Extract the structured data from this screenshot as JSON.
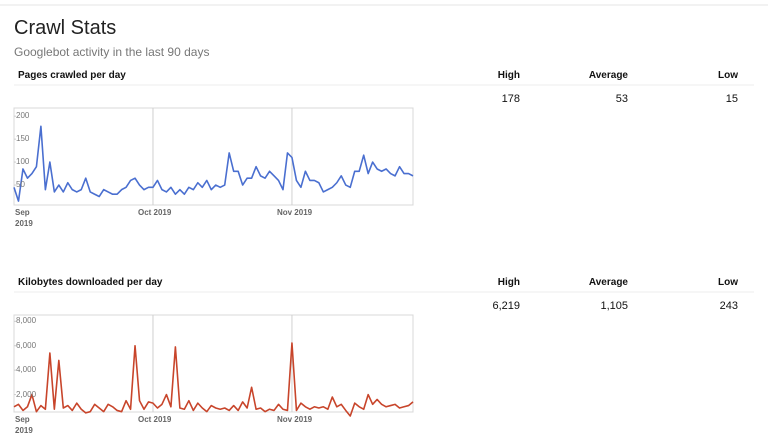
{
  "header": {
    "title": "Crawl Stats",
    "subtitle": "Googlebot activity in the last 90 days"
  },
  "chart_data": [
    {
      "type": "line",
      "title": "Pages crawled per day",
      "summary_labels": [
        "High",
        "Average",
        "Low"
      ],
      "summary_values": [
        178,
        53,
        15
      ],
      "categories": [
        "Sep 2019",
        null,
        null,
        null,
        null,
        null,
        null,
        null,
        null,
        null,
        null,
        null,
        null,
        null,
        null,
        null,
        null,
        null,
        null,
        null,
        null,
        null,
        null,
        null,
        null,
        null,
        null,
        null,
        null,
        null,
        null,
        "Oct 2019",
        null,
        null,
        null,
        null,
        null,
        null,
        null,
        null,
        null,
        null,
        null,
        null,
        null,
        null,
        null,
        null,
        null,
        null,
        null,
        null,
        null,
        null,
        null,
        null,
        null,
        null,
        null,
        null,
        null,
        null,
        "Nov 2019",
        null,
        null,
        null,
        null,
        null,
        null,
        null,
        null,
        null,
        null,
        null,
        null,
        null,
        null,
        null,
        null,
        null,
        null,
        null,
        null,
        null,
        null,
        null,
        null,
        null,
        null,
        null
      ],
      "series": [
        {
          "color": "#4a6fd0",
          "values": [
            45,
            15,
            85,
            65,
            75,
            90,
            178,
            40,
            100,
            35,
            50,
            35,
            55,
            40,
            35,
            40,
            65,
            35,
            30,
            25,
            40,
            35,
            30,
            30,
            40,
            45,
            60,
            65,
            50,
            40,
            45,
            45,
            60,
            40,
            35,
            45,
            30,
            40,
            30,
            45,
            40,
            55,
            45,
            60,
            40,
            50,
            45,
            50,
            120,
            80,
            80,
            50,
            65,
            65,
            90,
            70,
            65,
            80,
            70,
            60,
            40,
            120,
            110,
            60,
            45,
            80,
            60,
            60,
            55,
            35,
            40,
            45,
            55,
            70,
            50,
            45,
            80,
            80,
            115,
            75,
            100,
            85,
            80,
            85,
            75,
            70,
            90,
            75,
            75,
            70
          ]
        }
      ],
      "ylim": [
        0,
        220
      ],
      "yticks": [
        50,
        100,
        150,
        200
      ]
    },
    {
      "type": "line",
      "title": "Kilobytes downloaded per day",
      "summary_labels": [
        "High",
        "Average",
        "Low"
      ],
      "summary_values": [
        6219,
        1105,
        243
      ],
      "summary_value_labels": [
        "6,219",
        "1,105",
        "243"
      ],
      "categories": [
        "Sep 2019",
        null,
        null,
        null,
        null,
        null,
        null,
        null,
        null,
        null,
        null,
        null,
        null,
        null,
        null,
        null,
        null,
        null,
        null,
        null,
        null,
        null,
        null,
        null,
        null,
        null,
        null,
        null,
        null,
        null,
        null,
        "Oct 2019",
        null,
        null,
        null,
        null,
        null,
        null,
        null,
        null,
        null,
        null,
        null,
        null,
        null,
        null,
        null,
        null,
        null,
        null,
        null,
        null,
        null,
        null,
        null,
        null,
        null,
        null,
        null,
        null,
        null,
        null,
        "Nov 2019",
        null,
        null,
        null,
        null,
        null,
        null,
        null,
        null,
        null,
        null,
        null,
        null,
        null,
        null,
        null,
        null,
        null,
        null,
        null,
        null,
        null,
        null,
        null,
        null,
        null,
        null,
        null
      ],
      "series": [
        {
          "color": "#c8452b",
          "values": [
            1000,
            1200,
            700,
            1000,
            2000,
            600,
            1100,
            800,
            5400,
            800,
            4800,
            900,
            1100,
            700,
            1300,
            800,
            500,
            600,
            1200,
            900,
            600,
            1200,
            1000,
            700,
            600,
            1500,
            800,
            6000,
            1500,
            800,
            1400,
            1300,
            900,
            1200,
            2000,
            1000,
            5900,
            900,
            800,
            1500,
            700,
            1300,
            900,
            600,
            1100,
            900,
            800,
            900,
            700,
            1100,
            700,
            1400,
            900,
            2600,
            800,
            900,
            600,
            800,
            700,
            1200,
            800,
            700,
            6219,
            700,
            1300,
            1000,
            800,
            1000,
            900,
            1000,
            800,
            1800,
            1000,
            1200,
            700,
            243,
            1300,
            1000,
            800,
            2000,
            1200,
            1600,
            1200,
            1000,
            1100,
            1200,
            900,
            1000,
            1100,
            1400
          ]
        }
      ],
      "ylim": [
        0,
        8600
      ],
      "yticks": [
        {
          "value": 2000,
          "label": "2,000"
        },
        {
          "value": 4000,
          "label": "4,000"
        },
        {
          "value": 6000,
          "label": "6,000"
        },
        {
          "value": 8000,
          "label": "8,000"
        }
      ]
    }
  ]
}
